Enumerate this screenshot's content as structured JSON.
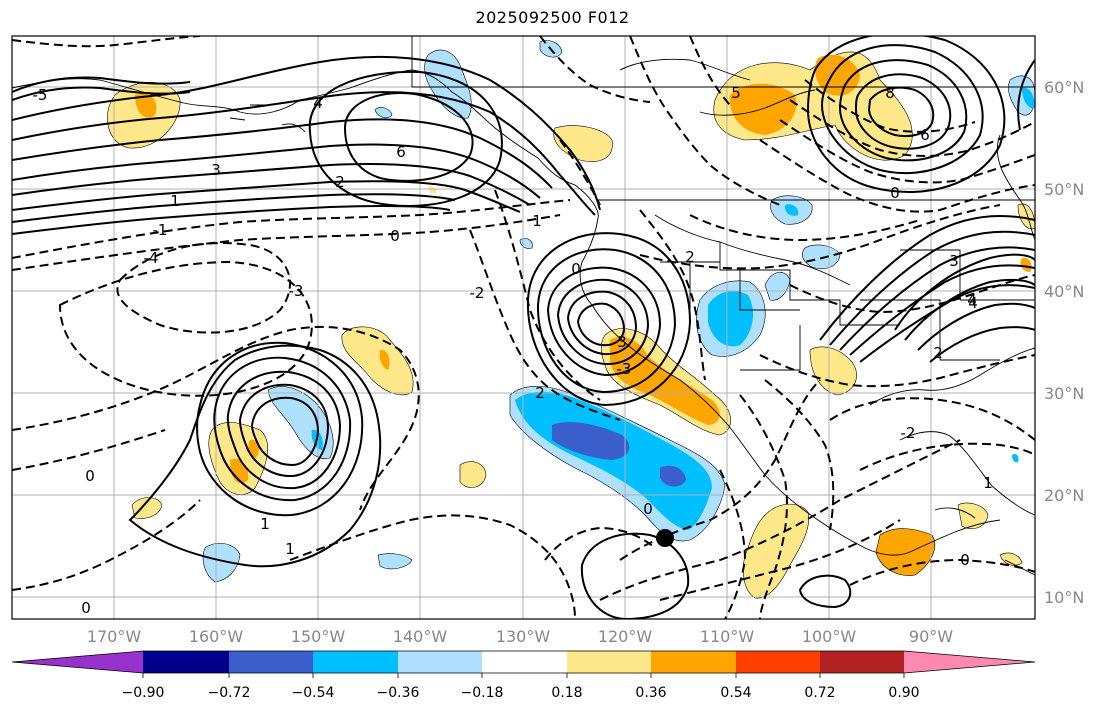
{
  "title": "2025092500 F012",
  "map": {
    "longitude_labels": [
      "170°W",
      "160°W",
      "150°W",
      "140°W",
      "130°W",
      "120°W",
      "110°W",
      "100°W",
      "90°W"
    ],
    "latitude_labels": [
      "60°N",
      "50°N",
      "40°N",
      "30°N",
      "20°N",
      "10°N"
    ],
    "contour_labels": [
      "6",
      "4",
      "3",
      "2",
      "1",
      "0",
      "-1",
      "-2",
      "-3",
      "-4",
      "-5",
      "8",
      "6",
      "4",
      "3",
      "2",
      "1",
      "0",
      "-2",
      "-3",
      "0",
      "1",
      "4",
      "5",
      "3",
      "2",
      "0",
      "0",
      "0",
      "0",
      "1",
      "1",
      "2"
    ],
    "marker": "black-dot"
  },
  "colorbar": {
    "colors": [
      "#9932cc",
      "#00008b",
      "#3a5fcd",
      "#00bfff",
      "#b0e0ff",
      "#ffffff",
      "#ffe88a",
      "#ffa500",
      "#ff3f00",
      "#b22222",
      "#ff88b0"
    ],
    "tick_labels": [
      "−0.90",
      "−0.72",
      "−0.54",
      "−0.36",
      "−0.18",
      "0.18",
      "0.36",
      "0.54",
      "0.72",
      "0.90"
    ]
  },
  "colors": {
    "frame": "#000000",
    "grid": "#b0b0b0",
    "axis_label": "#888888"
  }
}
